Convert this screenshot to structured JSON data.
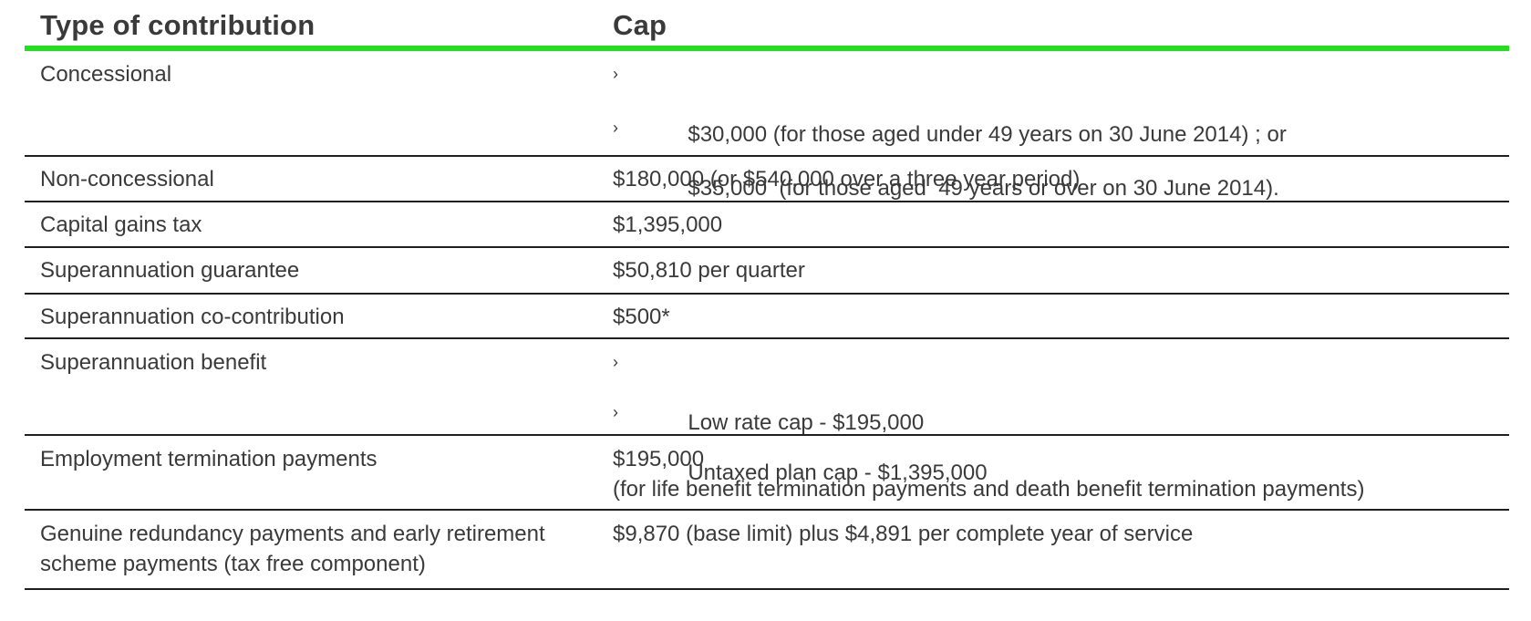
{
  "table": {
    "headers": {
      "type": "Type of contribution",
      "cap": "Cap"
    },
    "bullet_glyph": "›",
    "rows": [
      {
        "type": "Concessional",
        "cap_bullets": [
          "$30,000 (for those aged under 49 years on 30 June 2014) ; or",
          "$35,000  (for those aged  49 years or over on 30 June 2014)."
        ]
      },
      {
        "type": "Non-concessional",
        "cap": "$180,000 (or $540,000 over a three year period)"
      },
      {
        "type": "Capital gains tax",
        "cap": "$1,395,000"
      },
      {
        "type": "Superannuation guarantee",
        "cap": "$50,810 per quarter"
      },
      {
        "type": "Superannuation co-contribution",
        "cap": "$500*"
      },
      {
        "type": "Superannuation benefit",
        "cap_bullets": [
          "Low rate cap - $195,000",
          "Untaxed plan cap - $1,395,000"
        ]
      },
      {
        "type": "Employment termination payments",
        "cap_lines": [
          "$195,000",
          "(for life benefit termination payments and death benefit termination payments)"
        ]
      },
      {
        "type_lines": [
          "Genuine redundancy payments and early retirement",
          "scheme payments (tax free component)"
        ],
        "cap": "$9,870 (base limit) plus $4,891 per complete year of service"
      }
    ]
  },
  "colors": {
    "accent_rule": "#22e01f",
    "row_rule": "#1f1f1f",
    "text": "#3a3a3a"
  }
}
